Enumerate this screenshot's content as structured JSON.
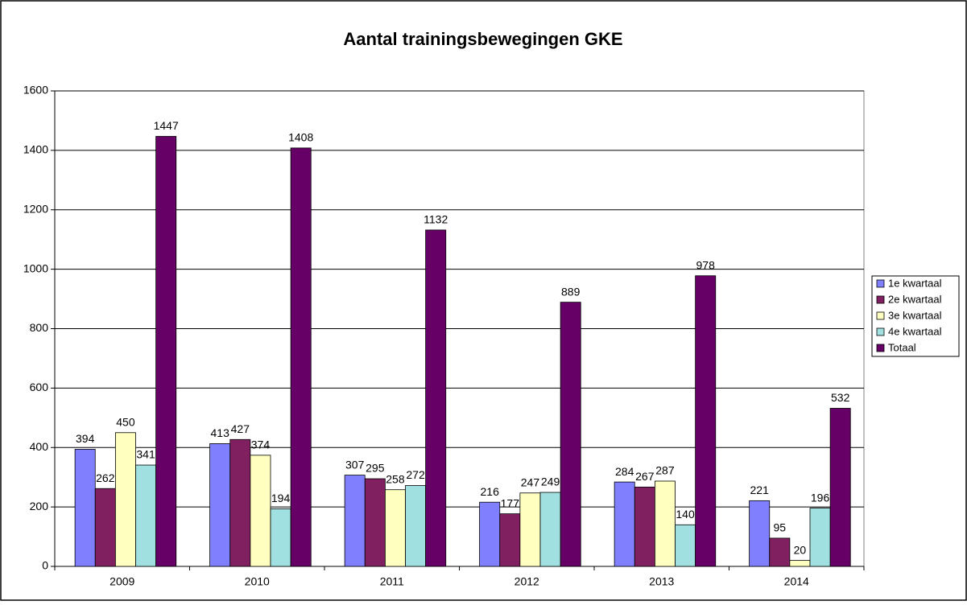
{
  "chart_data": {
    "type": "bar",
    "title": "Aantal trainingsbewegingen GKE",
    "categories": [
      "2009",
      "2010",
      "2011",
      "2012",
      "2013",
      "2014"
    ],
    "series": [
      {
        "name": "1e kwartaal",
        "color": "#8080ff",
        "values": [
          394,
          413,
          307,
          216,
          284,
          221
        ]
      },
      {
        "name": "2e kwartaal",
        "color": "#802060",
        "values": [
          262,
          427,
          295,
          177,
          267,
          95
        ]
      },
      {
        "name": "3e kwartaal",
        "color": "#ffffc0",
        "values": [
          450,
          374,
          258,
          247,
          287,
          20
        ]
      },
      {
        "name": "4e kwartaal",
        "color": "#a0e0e0",
        "values": [
          341,
          194,
          272,
          249,
          140,
          196
        ]
      },
      {
        "name": "Totaal",
        "color": "#660066",
        "values": [
          1447,
          1408,
          1132,
          889,
          978,
          532
        ]
      }
    ],
    "ylim": [
      0,
      1600
    ],
    "yticks": [
      0,
      200,
      400,
      600,
      800,
      1000,
      1200,
      1400,
      1600
    ],
    "grid": true,
    "legend": "right"
  }
}
